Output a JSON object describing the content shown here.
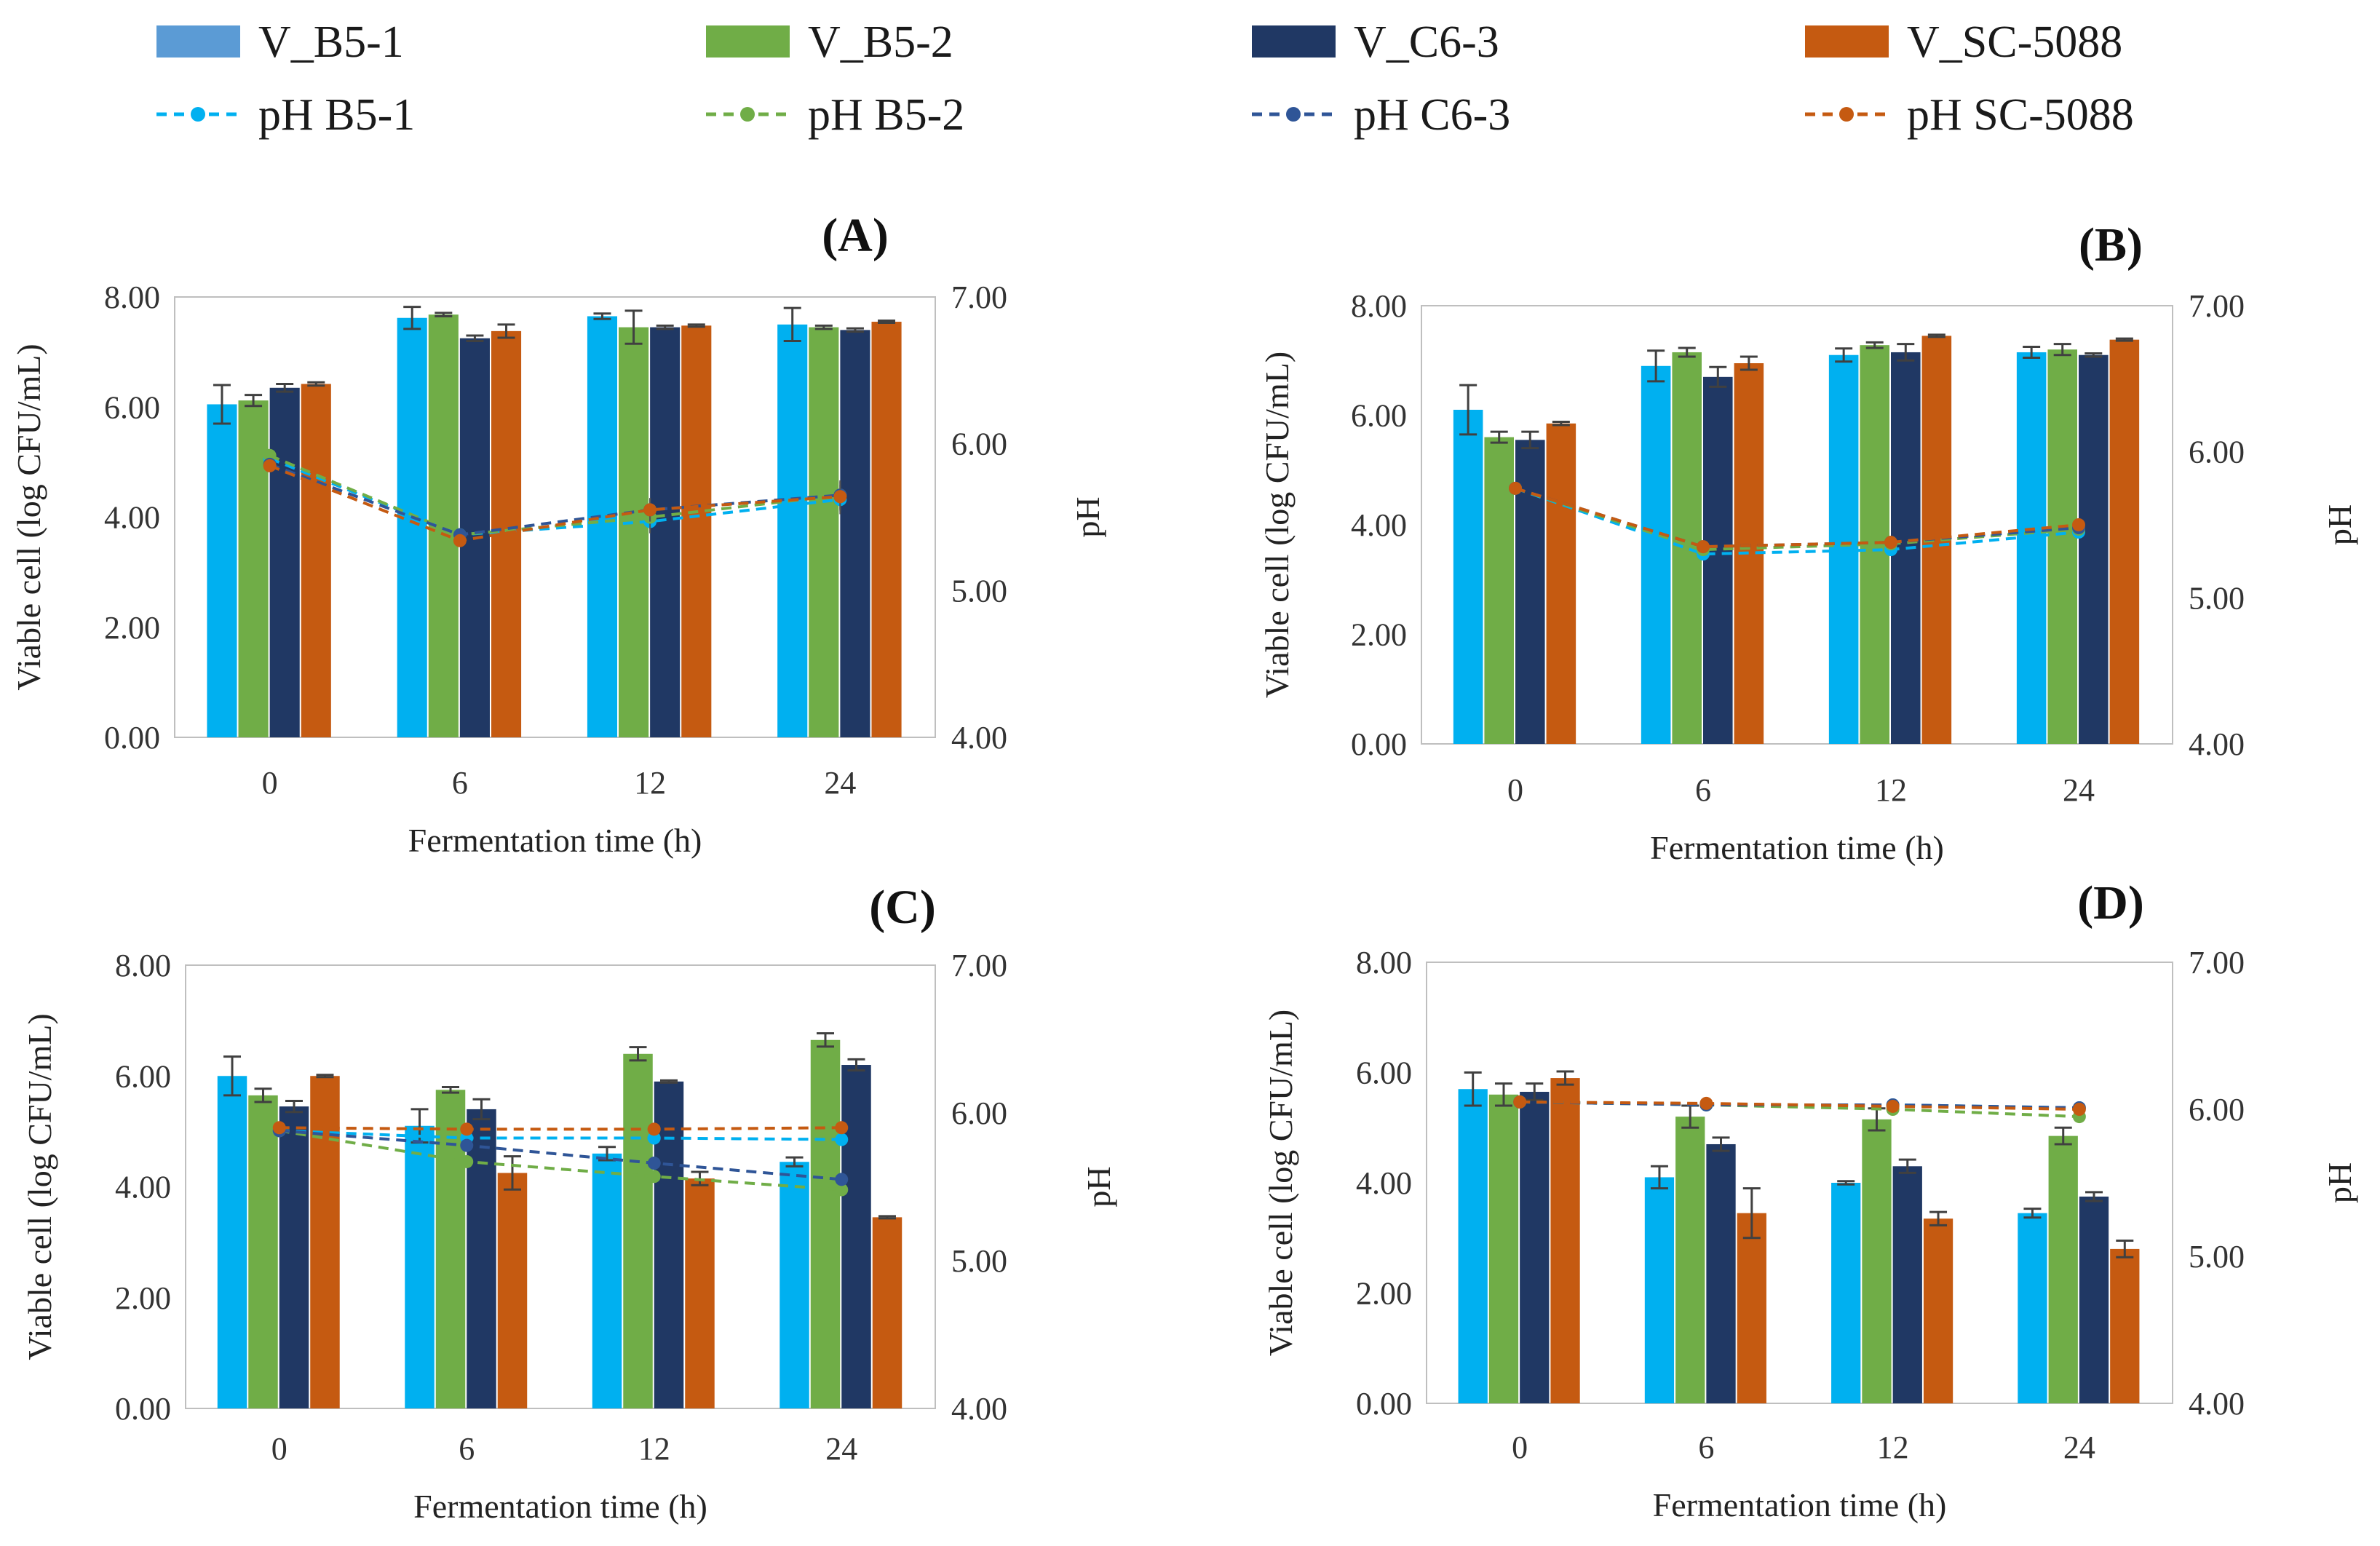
{
  "series_styles": {
    "bars": [
      {
        "key": "V_B5-1",
        "color": "#00b0f0",
        "legend_color": "#5b9bd5"
      },
      {
        "key": "V_B5-2",
        "color": "#70ad47",
        "legend_color": "#70ad47"
      },
      {
        "key": "V_C6-3",
        "color": "#203864",
        "legend_color": "#203864"
      },
      {
        "key": "V_SC-5088",
        "color": "#c55a11",
        "legend_color": "#c55a11"
      }
    ],
    "lines": [
      {
        "key": "pH B5-1",
        "color": "#00b0f0"
      },
      {
        "key": "pH B5-2",
        "color": "#70ad47"
      },
      {
        "key": "pH C6-3",
        "color": "#2f5597"
      },
      {
        "key": "pH SC-5088",
        "color": "#c55a11"
      }
    ]
  },
  "legend": {
    "bars": [
      "V_B5-1",
      "V_B5-2",
      "V_C6-3",
      "V_SC-5088"
    ],
    "lines": [
      "pH B5-1",
      "pH B5-2",
      "pH C6-3",
      "pH SC-5088"
    ]
  },
  "chart_data": [
    {
      "type": "bar",
      "panel_label": "(A)",
      "categories": [
        "0",
        "6",
        "12",
        "24"
      ],
      "xlabel": "Fermentation time (h)",
      "ylabel": "Viable cell (log CFU/mL)",
      "y2label": "pH",
      "ylim": [
        0,
        8
      ],
      "y2lim": [
        4,
        7
      ],
      "yticks": [
        "0.00",
        "2.00",
        "4.00",
        "6.00",
        "8.00"
      ],
      "y2ticks": [
        "4.00",
        "5.00",
        "6.00",
        "7.00"
      ],
      "series": [
        {
          "name": "V_B5-1",
          "values": [
            6.05,
            7.62,
            7.65,
            7.5
          ],
          "errors": [
            0.35,
            0.2,
            0.05,
            0.3
          ]
        },
        {
          "name": "V_B5-2",
          "values": [
            6.12,
            7.68,
            7.45,
            7.45
          ],
          "errors": [
            0.1,
            0.03,
            0.3,
            0.03
          ]
        },
        {
          "name": "V_C6-3",
          "values": [
            6.35,
            7.25,
            7.45,
            7.4
          ],
          "errors": [
            0.07,
            0.05,
            0.03,
            0.03
          ]
        },
        {
          "name": "V_SC-5088",
          "values": [
            6.42,
            7.38,
            7.48,
            7.55
          ],
          "errors": [
            0.03,
            0.12,
            0.02,
            0.02
          ]
        }
      ],
      "line_series": [
        {
          "name": "pH B5-1",
          "values": [
            5.9,
            5.38,
            5.47,
            5.62
          ],
          "errors": [
            0.02,
            0.02,
            0.08,
            0.1
          ]
        },
        {
          "name": "pH B5-2",
          "values": [
            5.92,
            5.38,
            5.5,
            5.65
          ],
          "errors": [
            0.02,
            0.02,
            0.08,
            0.1
          ]
        },
        {
          "name": "pH C6-3",
          "values": [
            5.86,
            5.38,
            5.55,
            5.65
          ],
          "errors": [
            0.02,
            0.02,
            0.08,
            0.1
          ]
        },
        {
          "name": "pH SC-5088",
          "values": [
            5.85,
            5.34,
            5.55,
            5.64
          ],
          "errors": [
            0.02,
            0.02,
            0.08,
            0.1
          ]
        }
      ]
    },
    {
      "type": "bar",
      "panel_label": "(B)",
      "categories": [
        "0",
        "6",
        "12",
        "24"
      ],
      "xlabel": "Fermentation time (h)",
      "ylabel": "Viable cell (log CFU/mL)",
      "y2label": "pH",
      "ylim": [
        0,
        8
      ],
      "y2lim": [
        4,
        7
      ],
      "yticks": [
        "0.00",
        "2.00",
        "4.00",
        "6.00",
        "8.00"
      ],
      "y2ticks": [
        "4.00",
        "5.00",
        "6.00",
        "7.00"
      ],
      "series": [
        {
          "name": "V_B5-1",
          "values": [
            6.1,
            6.9,
            7.1,
            7.15
          ],
          "errors": [
            0.45,
            0.28,
            0.12,
            0.1
          ]
        },
        {
          "name": "V_B5-2",
          "values": [
            5.6,
            7.15,
            7.28,
            7.2
          ],
          "errors": [
            0.1,
            0.08,
            0.05,
            0.1
          ]
        },
        {
          "name": "V_C6-3",
          "values": [
            5.55,
            6.7,
            7.15,
            7.1
          ],
          "errors": [
            0.15,
            0.18,
            0.15,
            0.03
          ]
        },
        {
          "name": "V_SC-5088",
          "values": [
            5.85,
            6.95,
            7.45,
            7.38
          ],
          "errors": [
            0.03,
            0.12,
            0.02,
            0.02
          ]
        }
      ],
      "line_series": [
        {
          "name": "pH B5-1",
          "values": [
            5.75,
            5.3,
            5.33,
            5.45
          ],
          "errors": [
            0.02,
            0.03,
            0.02,
            0.04
          ]
        },
        {
          "name": "pH B5-2",
          "values": [
            5.75,
            5.33,
            5.37,
            5.47
          ],
          "errors": [
            0.02,
            0.03,
            0.02,
            0.04
          ]
        },
        {
          "name": "pH C6-3",
          "values": [
            5.75,
            5.35,
            5.38,
            5.48
          ],
          "errors": [
            0.02,
            0.03,
            0.02,
            0.04
          ]
        },
        {
          "name": "pH SC-5088",
          "values": [
            5.75,
            5.35,
            5.38,
            5.5
          ],
          "errors": [
            0.02,
            0.03,
            0.02,
            0.04
          ]
        }
      ]
    },
    {
      "type": "bar",
      "panel_label": "(C)",
      "categories": [
        "0",
        "6",
        "12",
        "24"
      ],
      "xlabel": "Fermentation time (h)",
      "ylabel": "Viable cell (log CFU/mL)",
      "y2label": "pH",
      "ylim": [
        0,
        8
      ],
      "y2lim": [
        4,
        7
      ],
      "yticks": [
        "0.00",
        "2.00",
        "4.00",
        "6.00",
        "8.00"
      ],
      "y2ticks": [
        "4.00",
        "5.00",
        "6.00",
        "7.00"
      ],
      "series": [
        {
          "name": "V_B5-1",
          "values": [
            6.0,
            5.1,
            4.6,
            4.45
          ],
          "errors": [
            0.35,
            0.3,
            0.12,
            0.08
          ]
        },
        {
          "name": "V_B5-2",
          "values": [
            5.65,
            5.75,
            6.4,
            6.65
          ],
          "errors": [
            0.12,
            0.05,
            0.12,
            0.12
          ]
        },
        {
          "name": "V_C6-3",
          "values": [
            5.45,
            5.4,
            5.9,
            6.2
          ],
          "errors": [
            0.1,
            0.18,
            0.02,
            0.1
          ]
        },
        {
          "name": "V_SC-5088",
          "values": [
            6.0,
            4.25,
            4.15,
            3.45
          ],
          "errors": [
            0.02,
            0.3,
            0.12,
            0.02
          ]
        }
      ],
      "line_series": [
        {
          "name": "pH B5-1",
          "values": [
            5.88,
            5.83,
            5.83,
            5.82
          ],
          "errors": [
            0.02,
            0.02,
            0.02,
            0.02
          ]
        },
        {
          "name": "pH B5-2",
          "values": [
            5.88,
            5.67,
            5.57,
            5.48
          ],
          "errors": [
            0.02,
            0.02,
            0.02,
            0.02
          ]
        },
        {
          "name": "pH C6-3",
          "values": [
            5.88,
            5.78,
            5.66,
            5.55
          ],
          "errors": [
            0.02,
            0.02,
            0.02,
            0.02
          ]
        },
        {
          "name": "pH SC-5088",
          "values": [
            5.9,
            5.89,
            5.89,
            5.9
          ],
          "errors": [
            0.02,
            0.02,
            0.02,
            0.02
          ]
        }
      ]
    },
    {
      "type": "bar",
      "panel_label": "(D)",
      "categories": [
        "0",
        "6",
        "12",
        "24"
      ],
      "xlabel": "Fermentation time (h)",
      "ylabel": "Viable cell (log CFU/mL)",
      "y2label": "pH",
      "ylim": [
        0,
        8
      ],
      "y2lim": [
        4,
        7
      ],
      "yticks": [
        "0.00",
        "2.00",
        "4.00",
        "6.00",
        "8.00"
      ],
      "y2ticks": [
        "4.00",
        "5.00",
        "6.00",
        "7.00"
      ],
      "series": [
        {
          "name": "V_B5-1",
          "values": [
            5.7,
            4.1,
            4.0,
            3.45
          ],
          "errors": [
            0.3,
            0.2,
            0.03,
            0.08
          ]
        },
        {
          "name": "V_B5-2",
          "values": [
            5.6,
            5.2,
            5.15,
            4.85
          ],
          "errors": [
            0.2,
            0.2,
            0.2,
            0.15
          ]
        },
        {
          "name": "V_C6-3",
          "values": [
            5.65,
            4.7,
            4.3,
            3.75
          ],
          "errors": [
            0.15,
            0.12,
            0.12,
            0.08
          ]
        },
        {
          "name": "V_SC-5088",
          "values": [
            5.9,
            3.45,
            3.35,
            2.8
          ],
          "errors": [
            0.12,
            0.45,
            0.12,
            0.15
          ]
        }
      ],
      "line_series": [
        {
          "name": "pH B5-1",
          "values": [
            6.05,
            6.03,
            6.03,
            6.01
          ],
          "errors": [
            0.01,
            0.01,
            0.01,
            0.01
          ]
        },
        {
          "name": "pH B5-2",
          "values": [
            6.05,
            6.03,
            6.0,
            5.95
          ],
          "errors": [
            0.01,
            0.01,
            0.01,
            0.01
          ]
        },
        {
          "name": "pH C6-3",
          "values": [
            6.05,
            6.03,
            6.03,
            6.01
          ],
          "errors": [
            0.01,
            0.01,
            0.01,
            0.01
          ]
        },
        {
          "name": "pH SC-5088",
          "values": [
            6.05,
            6.04,
            6.02,
            6.0
          ],
          "errors": [
            0.01,
            0.01,
            0.01,
            0.01
          ]
        }
      ]
    }
  ]
}
